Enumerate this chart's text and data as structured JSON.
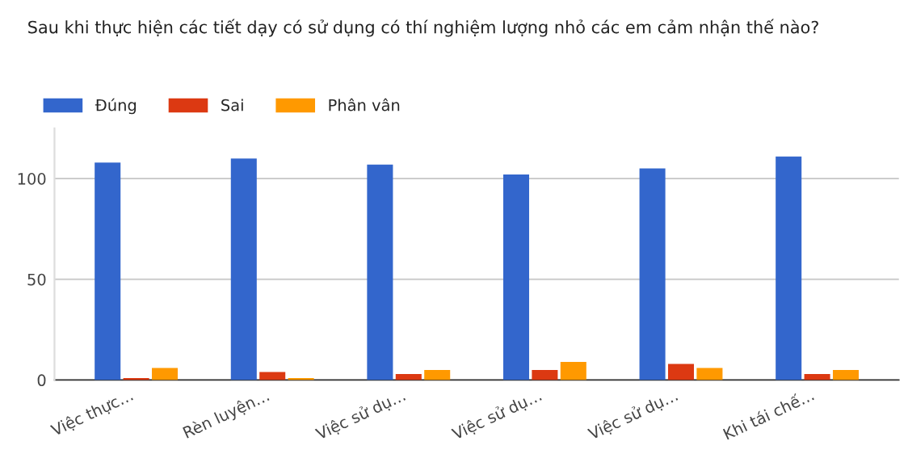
{
  "chart_data": {
    "type": "bar",
    "title": "Sau khi thực hiện các tiết dạy có sử dụng có thí nghiệm lượng nhỏ các em cảm nhận thế nào?",
    "categories": [
      "Việc thực…",
      "Rèn luyện…",
      "Việc sử dụ…",
      "Việc sử dụ…",
      "Việc sử dụ…",
      "Khi tái chế…"
    ],
    "series": [
      {
        "name": "Đúng",
        "color": "#3366cc",
        "values": [
          108,
          110,
          107,
          102,
          105,
          111
        ]
      },
      {
        "name": "Sai",
        "color": "#dc3912",
        "values": [
          1,
          4,
          3,
          5,
          8,
          3
        ]
      },
      {
        "name": "Phân vân",
        "color": "#ff9900",
        "values": [
          6,
          1,
          5,
          9,
          6,
          5
        ]
      }
    ],
    "ylim": [
      0,
      125
    ],
    "yticks": [
      0,
      50,
      100
    ],
    "grid": "y",
    "legend": "top left"
  }
}
